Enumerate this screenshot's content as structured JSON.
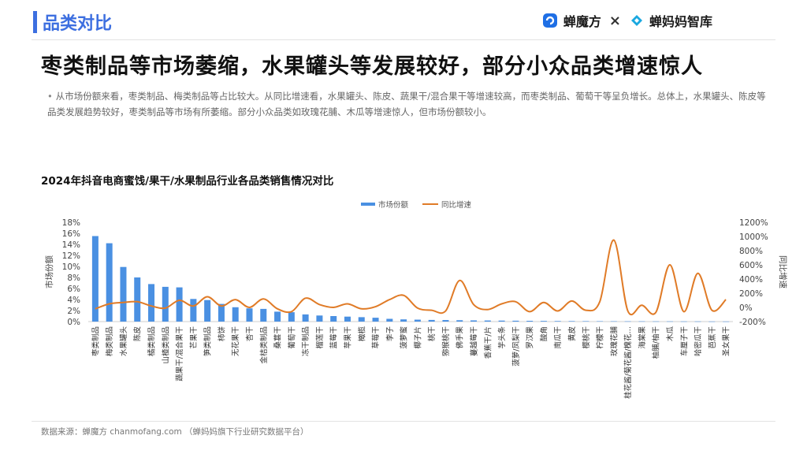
{
  "header": {
    "section_title": "品类对比",
    "brand_left": "蝉魔方",
    "brand_sep": "×",
    "brand_right": "蝉妈妈智库",
    "brand_left_icon": "chanmofang-logo-icon",
    "brand_right_icon": "chanmama-logo-icon"
  },
  "headline": "枣类制品等市场萎缩，水果罐头等发展较好，部分小众品类增速惊人",
  "summary": "从市场份额来看，枣类制品、梅类制品等占比较大。从同比增速看，水果罐头、陈皮、蔬果干/混合果干等增速较高，而枣类制品、葡萄干等呈负增长。总体上，水果罐头、陈皮等品类发展趋势较好，枣类制品等市场有所萎缩。部分小众品类如玫瑰花脯、木瓜等增速惊人，但市场份额较小。",
  "source": "数据来源：蝉魔方 chanmofang.com （蝉妈妈旗下行业研究数据平台）",
  "colors": {
    "accent": "#3d6fe0",
    "bar": "#4a90e2",
    "line": "#e07b27"
  },
  "chart_data": {
    "type": "bar",
    "title": "2024年抖音电商蜜饯/果干/水果制品行业各品类销售情况对比",
    "ylabel": "市场份额",
    "y2label": "同比增速",
    "ylim": [
      0,
      18
    ],
    "y2lim": [
      -200,
      1200
    ],
    "yticks": [
      "18%",
      "16%",
      "14%",
      "12%",
      "10%",
      "8%",
      "6%",
      "4%",
      "2%",
      "0%"
    ],
    "y2ticks": [
      "1200%",
      "1000%",
      "800%",
      "600%",
      "400%",
      "200%",
      "0%",
      "-200%"
    ],
    "legend_position": "top",
    "categories": [
      "枣类制品",
      "梅类制品",
      "水果罐头",
      "陈皮",
      "橘类制品",
      "山楂类制品",
      "蔬果干/混合果干",
      "芒果干",
      "笋类制品",
      "柿饼",
      "无花果干",
      "杏干",
      "金桔类制品",
      "桑葚干",
      "葡萄干",
      "冻干制品",
      "榴莲干",
      "蓝莓干",
      "苹果干",
      "橄榄",
      "草莓干",
      "李子",
      "菠萝蜜",
      "椰子片",
      "桃干",
      "猕猴桃干",
      "佛手果",
      "蔓越莓干",
      "香蕉干/片",
      "芋头条",
      "菠萝/凤梨干",
      "罗汉果",
      "酸角",
      "南瓜干",
      "黄皮",
      "樱桃干",
      "柠檬干",
      "玫瑰花脯",
      "桂花酱/菊花酱/槐花…",
      "海棠果",
      "柚脯/柚干",
      "木瓜",
      "车厘子干",
      "哈密瓜干",
      "芭蕉干",
      "圣女果干"
    ],
    "series": [
      {
        "name": "市场份额",
        "type": "bar",
        "axis": "left",
        "values": [
          15.5,
          14.2,
          9.9,
          8.0,
          6.8,
          6.3,
          6.2,
          4.1,
          3.9,
          3.2,
          2.6,
          2.4,
          2.3,
          1.8,
          1.7,
          1.3,
          1.1,
          1.0,
          0.9,
          0.8,
          0.7,
          0.5,
          0.4,
          0.35,
          0.3,
          0.28,
          0.25,
          0.22,
          0.2,
          0.18,
          0.16,
          0.14,
          0.12,
          0.1,
          0.09,
          0.08,
          0.07,
          0.06,
          0.05,
          0.05,
          0.04,
          0.04,
          0.03,
          0.03,
          0.02,
          0.02
        ]
      },
      {
        "name": "同比增速",
        "type": "line",
        "axis": "right",
        "values": [
          -20,
          50,
          70,
          80,
          20,
          -10,
          100,
          20,
          150,
          20,
          110,
          0,
          120,
          -20,
          -60,
          130,
          40,
          0,
          50,
          -20,
          10,
          110,
          170,
          -10,
          -40,
          -50,
          380,
          40,
          -30,
          50,
          80,
          -60,
          70,
          -50,
          90,
          -40,
          80,
          950,
          -50,
          30,
          -70,
          600,
          -60,
          480,
          -40,
          110
        ]
      }
    ]
  }
}
